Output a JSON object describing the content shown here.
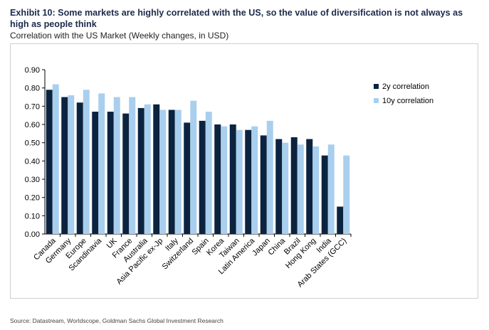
{
  "title": "Exhibit 10: Some markets are highly correlated with the US, so the value of diversification is not always as high as people think",
  "subtitle": "Correlation with the US Market (Weekly changes, in USD)",
  "source": "Source: Datastream, Worldscope, Goldman Sachs Global Investment Research",
  "colors": {
    "series_2y": "#0c2340",
    "series_10y": "#a9cfee"
  },
  "chart_data": {
    "type": "bar",
    "title": "Correlation with the US Market (Weekly changes, in USD)",
    "xlabel": "",
    "ylabel": "",
    "ylim": [
      0,
      0.9
    ],
    "yticks": [
      "0.00",
      "0.10",
      "0.20",
      "0.30",
      "0.40",
      "0.50",
      "0.60",
      "0.70",
      "0.80",
      "0.90"
    ],
    "legend_position": "right",
    "categories": [
      "Canada",
      "Germany",
      "Europe",
      "Scandinavia",
      "UK",
      "France",
      "Australia",
      "Asia Pacific ex-Jp",
      "Italy",
      "Switzerland",
      "Spain",
      "Korea",
      "Taiwan",
      "Latin America",
      "Japan",
      "China",
      "Brazil",
      "Hong Kong",
      "India",
      "Arab States (GCC)"
    ],
    "series": [
      {
        "name": "2y correlation",
        "values": [
          0.79,
          0.75,
          0.72,
          0.67,
          0.67,
          0.66,
          0.69,
          0.71,
          0.68,
          0.61,
          0.62,
          0.6,
          0.6,
          0.57,
          0.54,
          0.52,
          0.53,
          0.52,
          0.43,
          0.15
        ]
      },
      {
        "name": "10y correlation",
        "values": [
          0.82,
          0.76,
          0.79,
          0.77,
          0.75,
          0.75,
          0.71,
          0.68,
          0.68,
          0.73,
          0.67,
          0.59,
          0.57,
          0.59,
          0.62,
          0.5,
          0.49,
          0.48,
          0.49,
          0.43
        ]
      }
    ]
  }
}
